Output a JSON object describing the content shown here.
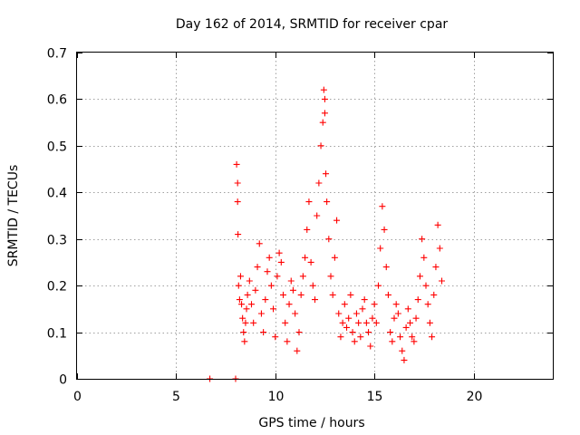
{
  "chart_data": {
    "type": "scatter",
    "title": "Day 162 of 2014, SRMTID for receiver cpar",
    "xlabel": "GPS time / hours",
    "ylabel": "SRMTID / TECUs",
    "xlim": [
      0,
      24
    ],
    "ylim": [
      0,
      0.7
    ],
    "xticks": [
      0,
      5,
      10,
      15,
      20
    ],
    "xtick_labels": [
      "0",
      "5",
      "10",
      "15",
      "20"
    ],
    "yticks": [
      0,
      0.1,
      0.2,
      0.3,
      0.4,
      0.5,
      0.6,
      0.7
    ],
    "ytick_labels": [
      "0",
      "0.1",
      "0.2",
      "0.3",
      "0.4",
      "0.5",
      "0.6",
      "0.7"
    ],
    "grid": true,
    "marker": "+",
    "series": [
      {
        "name": "SRMTID",
        "color": "#ff0000",
        "x": [
          6.7,
          8.0,
          8.05,
          8.1,
          8.1,
          8.12,
          8.15,
          8.2,
          8.25,
          8.3,
          8.35,
          8.4,
          8.45,
          8.5,
          8.55,
          8.6,
          8.7,
          8.8,
          8.9,
          9.0,
          9.1,
          9.2,
          9.3,
          9.4,
          9.5,
          9.6,
          9.7,
          9.8,
          9.9,
          10.0,
          10.1,
          10.2,
          10.3,
          10.4,
          10.5,
          10.6,
          10.7,
          10.8,
          10.9,
          11.0,
          11.1,
          11.2,
          11.3,
          11.4,
          11.5,
          11.6,
          11.7,
          11.8,
          11.9,
          12.0,
          12.1,
          12.2,
          12.3,
          12.4,
          12.45,
          12.5,
          12.5,
          12.55,
          12.6,
          12.7,
          12.8,
          12.9,
          13.0,
          13.1,
          13.2,
          13.3,
          13.4,
          13.5,
          13.6,
          13.7,
          13.8,
          13.9,
          14.0,
          14.1,
          14.2,
          14.3,
          14.4,
          14.5,
          14.6,
          14.7,
          14.8,
          14.9,
          15.0,
          15.1,
          15.2,
          15.3,
          15.4,
          15.5,
          15.6,
          15.7,
          15.8,
          15.9,
          16.0,
          16.1,
          16.2,
          16.3,
          16.4,
          16.5,
          16.6,
          16.7,
          16.8,
          16.9,
          17.0,
          17.1,
          17.2,
          17.3,
          17.4,
          17.5,
          17.6,
          17.7,
          17.8,
          17.9,
          18.0,
          18.1,
          18.2,
          18.3,
          18.4
        ],
        "y": [
          0.0,
          0.0,
          0.46,
          0.42,
          0.38,
          0.31,
          0.2,
          0.17,
          0.22,
          0.16,
          0.13,
          0.1,
          0.08,
          0.12,
          0.15,
          0.18,
          0.21,
          0.16,
          0.12,
          0.19,
          0.24,
          0.29,
          0.14,
          0.1,
          0.17,
          0.23,
          0.26,
          0.2,
          0.15,
          0.09,
          0.22,
          0.27,
          0.25,
          0.18,
          0.12,
          0.08,
          0.16,
          0.21,
          0.19,
          0.14,
          0.06,
          0.1,
          0.18,
          0.22,
          0.26,
          0.32,
          0.38,
          0.25,
          0.2,
          0.17,
          0.35,
          0.42,
          0.5,
          0.55,
          0.62,
          0.6,
          0.57,
          0.44,
          0.38,
          0.3,
          0.22,
          0.18,
          0.26,
          0.34,
          0.14,
          0.09,
          0.12,
          0.16,
          0.11,
          0.13,
          0.18,
          0.1,
          0.08,
          0.14,
          0.12,
          0.09,
          0.15,
          0.17,
          0.12,
          0.1,
          0.07,
          0.13,
          0.16,
          0.12,
          0.2,
          0.28,
          0.37,
          0.32,
          0.24,
          0.18,
          0.1,
          0.08,
          0.13,
          0.16,
          0.14,
          0.09,
          0.06,
          0.04,
          0.11,
          0.15,
          0.12,
          0.09,
          0.08,
          0.13,
          0.17,
          0.22,
          0.3,
          0.26,
          0.2,
          0.16,
          0.12,
          0.09,
          0.18,
          0.24,
          0.33,
          0.28,
          0.21
        ]
      }
    ]
  }
}
